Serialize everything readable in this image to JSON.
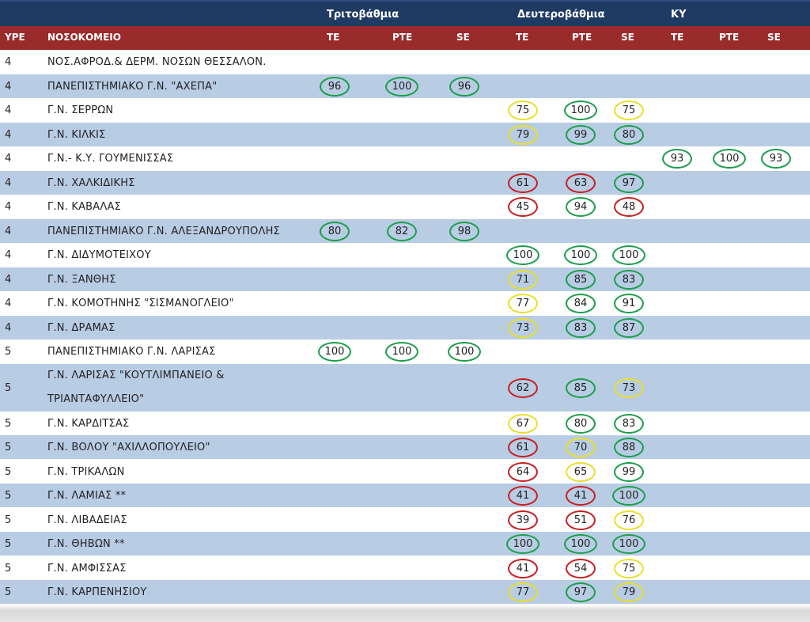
{
  "header": {
    "groups": {
      "tertiary": "Τριτοβάθμια",
      "secondary": "Δευτεροβάθμια",
      "primary": "ΚΥ"
    },
    "columns": {
      "ype": "YPE",
      "hospital": "ΝΟΣΟΚΟΜΕΙΟ",
      "t_te": "TE",
      "t_pte": "PTE",
      "t_se": "SE",
      "s_te": "TE",
      "s_pte": "PTE",
      "s_se": "SE",
      "k_te": "TE",
      "k_pte": "PTE",
      "k_se": "SE"
    }
  },
  "colors": {
    "green": "#1a9e4a",
    "yellow": "#e8e02a",
    "red": "#c81e1e",
    "header_blue": "#1f3b63",
    "header_red": "#9a2b2b",
    "row_alt": "#b8cce4"
  },
  "rows": [
    {
      "ype": "4",
      "name": "ΝΟΣ.ΑΦΡΟΔ.& ΔΕΡΜ. ΝΟΣΩΝ ΘΕΣΣΑΛΟΝ."
    },
    {
      "ype": "4",
      "name": "ΠΑΝΕΠΙΣΤΗΜΙΑΚΟ Γ.Ν. \"ΑΧΕΠΑ\"",
      "t_te": "96",
      "t_pte": "100",
      "t_se": "96"
    },
    {
      "ype": "4",
      "name": "Γ.Ν. ΣΕΡΡΩΝ",
      "s_te": "75",
      "s_pte": "100",
      "s_se": "75"
    },
    {
      "ype": "4",
      "name": "Γ.Ν. ΚΙΛΚΙΣ",
      "s_te": "79",
      "s_pte": "99",
      "s_se": "80"
    },
    {
      "ype": "4",
      "name": "Γ.Ν.- Κ.Υ. ΓΟΥΜΕΝΙΣΣΑΣ",
      "k_te": "93",
      "k_pte": "100",
      "k_se": "93"
    },
    {
      "ype": "4",
      "name": "Γ.Ν. ΧΑΛΚΙΔΙΚΗΣ",
      "s_te": "61",
      "s_pte": "63",
      "s_se": "97"
    },
    {
      "ype": "4",
      "name": "Γ.Ν. ΚΑΒΑΛΑΣ",
      "s_te": "45",
      "s_pte": "94",
      "s_se": "48"
    },
    {
      "ype": "4",
      "name": "ΠΑΝΕΠΙΣΤΗΜΙΑΚΟ Γ.Ν. ΑΛΕΞΑΝΔΡΟΥΠΟΛΗΣ",
      "t_te": "80",
      "t_pte": "82",
      "t_se": "98"
    },
    {
      "ype": "4",
      "name": "Γ.Ν. ΔΙΔΥΜΟΤΕΙΧΟΥ",
      "s_te": "100",
      "s_pte": "100",
      "s_se": "100"
    },
    {
      "ype": "4",
      "name": "Γ.Ν. ΞΑΝΘΗΣ",
      "s_te": "71",
      "s_pte": "85",
      "s_se": "83"
    },
    {
      "ype": "4",
      "name": "Γ.Ν. ΚΟΜΟΤΗΝΗΣ \"ΣΙΣΜΑΝΟΓΛΕΙΟ\"",
      "s_te": "77",
      "s_pte": "84",
      "s_se": "91"
    },
    {
      "ype": "4",
      "name": "Γ.Ν. ΔΡΑΜΑΣ",
      "s_te": "73",
      "s_pte": "83",
      "s_se": "87"
    },
    {
      "ype": "5",
      "name": "ΠΑΝΕΠΙΣΤΗΜΙΑΚΟ Γ.Ν. ΛΑΡΙΣΑΣ",
      "t_te": "100",
      "t_pte": "100",
      "t_se": "100"
    },
    {
      "ype": "5",
      "name": "Γ.Ν. ΛΑΡΙΣΑΣ \"ΚΟΥΤΛΙΜΠΑΝΕΙΟ & ΤΡΙΑΝΤΑΦΥΛΛΕΙΟ\"",
      "s_te": "62",
      "s_pte": "85",
      "s_se": "73"
    },
    {
      "ype": "5",
      "name": "Γ.Ν. ΚΑΡΔΙΤΣΑΣ",
      "s_te": "67",
      "s_pte": "80",
      "s_se": "83"
    },
    {
      "ype": "5",
      "name": "Γ.Ν. ΒΟΛΟΥ \"ΑΧΙΛΛΟΠΟΥΛΕΙΟ\"",
      "s_te": "61",
      "s_pte": "70",
      "s_se": "88"
    },
    {
      "ype": "5",
      "name": "Γ.Ν. ΤΡΙΚΑΛΩΝ",
      "s_te": "64",
      "s_pte": "65",
      "s_se": "99"
    },
    {
      "ype": "5",
      "name": "Γ.Ν. ΛΑΜΙΑΣ **",
      "s_te": "41",
      "s_pte": "41",
      "s_se": "100"
    },
    {
      "ype": "5",
      "name": "Γ.Ν. ΛΙΒΑΔΕΙΑΣ",
      "s_te": "39",
      "s_pte": "51",
      "s_se": "76"
    },
    {
      "ype": "5",
      "name": "Γ.Ν. ΘΗΒΩΝ **",
      "s_te": "100",
      "s_pte": "100",
      "s_se": "100"
    },
    {
      "ype": "5",
      "name": "Γ.Ν. ΑΜΦΙΣΣΑΣ",
      "s_te": "41",
      "s_pte": "54",
      "s_se": "75"
    },
    {
      "ype": "5",
      "name": "Γ.Ν. ΚΑΡΠΕΝΗΣΙΟΥ",
      "s_te": "77",
      "s_pte": "97",
      "s_se": "79"
    }
  ]
}
